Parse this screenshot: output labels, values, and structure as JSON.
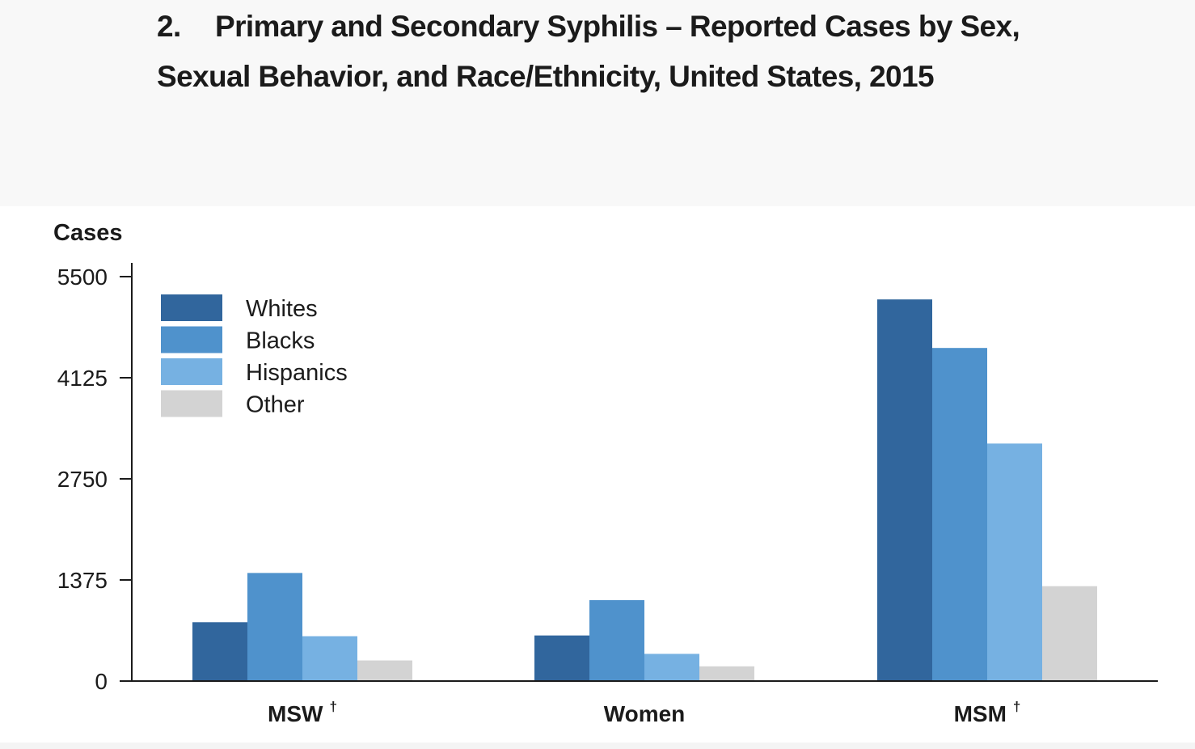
{
  "header": {
    "number": "2.",
    "title_line1": "Primary and Secondary Syphilis – Reported Cases by Sex,",
    "title_line2": "Sexual Behavior, and Race/Ethnicity, United States, 2015"
  },
  "chart_data": {
    "type": "bar",
    "ylabel": "Cases",
    "xlabel": "",
    "ylim": [
      0,
      5500
    ],
    "yticks": [
      0,
      1375,
      2750,
      4125,
      5500
    ],
    "categories": [
      "MSW",
      "Women",
      "MSM"
    ],
    "category_marks": [
      "†",
      "",
      "†"
    ],
    "series": [
      {
        "name": "Whites",
        "color": "#31669d",
        "values": [
          800,
          620,
          5190
        ]
      },
      {
        "name": "Blacks",
        "color": "#4f92cc",
        "values": [
          1470,
          1100,
          4530
        ]
      },
      {
        "name": "Hispanics",
        "color": "#76b1e2",
        "values": [
          610,
          370,
          3230
        ]
      },
      {
        "name": "Other",
        "color": "#d3d3d3",
        "values": [
          280,
          200,
          1290
        ]
      }
    ],
    "legend": "top-left",
    "grid": false
  }
}
